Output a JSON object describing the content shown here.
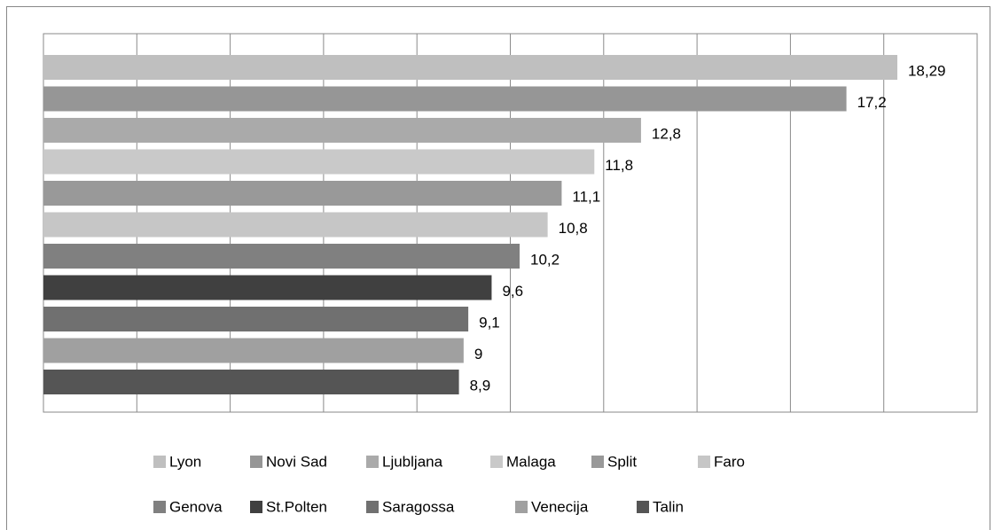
{
  "chart_data": {
    "type": "bar",
    "orientation": "horizontal",
    "xlim": [
      0,
      20
    ],
    "xticks": [
      0,
      2,
      4,
      6,
      8,
      10,
      12,
      14,
      16,
      18,
      20
    ],
    "grid": true,
    "series": [
      {
        "name": "Lyon",
        "color": "#bfbfbf",
        "values": [
          18.29
        ],
        "value_labels": [
          "18,29"
        ]
      },
      {
        "name": "Novi Sad",
        "color": "#969696",
        "values": [
          17.2
        ],
        "value_labels": [
          "17,2"
        ]
      },
      {
        "name": "Ljubljana",
        "color": "#aaaaaa",
        "values": [
          12.8
        ],
        "value_labels": [
          "12,8"
        ]
      },
      {
        "name": "Malaga",
        "color": "#c9c9c9",
        "values": [
          11.8
        ],
        "value_labels": [
          "11,8"
        ]
      },
      {
        "name": "Split",
        "color": "#999999",
        "values": [
          11.1
        ],
        "value_labels": [
          "11,1"
        ]
      },
      {
        "name": "Faro",
        "color": "#c6c6c6",
        "values": [
          10.8
        ],
        "value_labels": [
          "10,8"
        ]
      },
      {
        "name": "Genova",
        "color": "#808080",
        "values": [
          10.2
        ],
        "value_labels": [
          "10,2"
        ]
      },
      {
        "name": "St.Polten",
        "color": "#404040",
        "values": [
          9.6
        ],
        "value_labels": [
          "9,6"
        ]
      },
      {
        "name": "Saragossa",
        "color": "#707070",
        "values": [
          9.1
        ],
        "value_labels": [
          "9,1"
        ]
      },
      {
        "name": "Venecija",
        "color": "#a0a0a0",
        "values": [
          9
        ],
        "value_labels": [
          "9"
        ]
      },
      {
        "name": "Talin",
        "color": "#555555",
        "values": [
          8.9
        ],
        "value_labels": [
          "8,9"
        ]
      }
    ]
  }
}
